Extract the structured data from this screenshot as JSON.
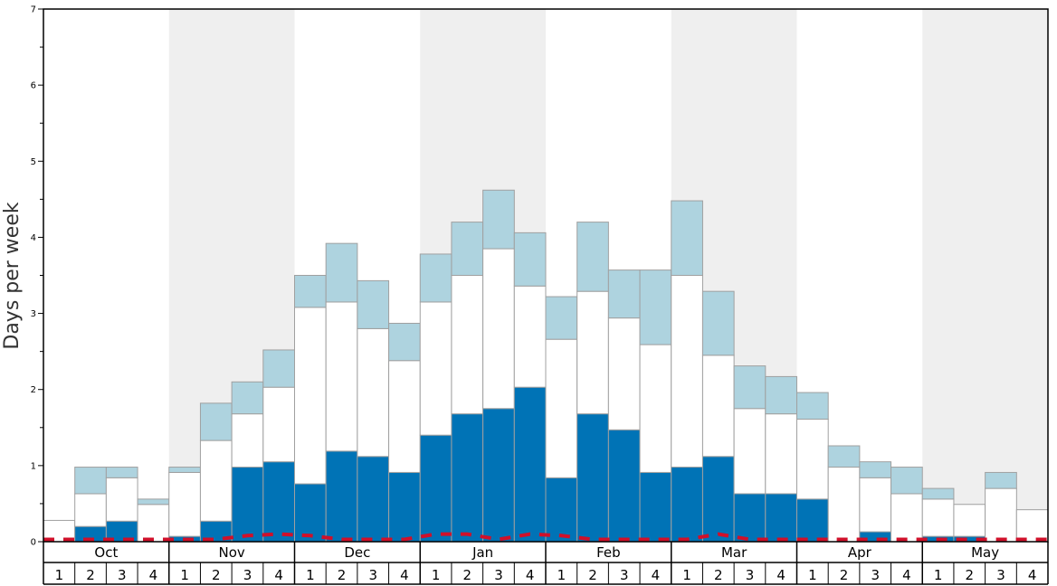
{
  "chart_data": {
    "type": "bar",
    "ylabel": "Days per week",
    "xlabel": "",
    "ylim": [
      0,
      7
    ],
    "yticks": [
      0,
      1,
      2,
      3,
      4,
      5,
      6,
      7
    ],
    "months": [
      "Oct",
      "Nov",
      "Dec",
      "Jan",
      "Feb",
      "Mar",
      "Apr",
      "May"
    ],
    "weeks_per_month": [
      "1",
      "2",
      "3",
      "4"
    ],
    "colors": {
      "dark": "#0073b6",
      "white": "#ffffff",
      "light": "#aed3df",
      "shade": "#efefef",
      "line": "#d0102a",
      "edge": "#a0a0a0"
    },
    "series": [
      {
        "color_key": "dark",
        "values": [
          0,
          0.2,
          0.27,
          0,
          0.07,
          0.27,
          0.98,
          1.05,
          0.76,
          1.19,
          1.12,
          0.91,
          1.4,
          1.68,
          1.75,
          2.03,
          0.84,
          1.68,
          1.47,
          0.91,
          0.98,
          1.12,
          0.63,
          0.63,
          0.56,
          0,
          0.13,
          0,
          0.07,
          0.07,
          0,
          0
        ]
      },
      {
        "color_key": "white",
        "values": [
          0.28,
          0.43,
          0.57,
          0.49,
          0.84,
          1.06,
          0.7,
          0.98,
          2.32,
          1.96,
          1.68,
          1.47,
          1.75,
          1.82,
          2.1,
          1.33,
          1.82,
          1.61,
          1.47,
          1.68,
          2.52,
          1.33,
          1.12,
          1.05,
          1.05,
          0.98,
          0.71,
          0.63,
          0.49,
          0.42,
          0.7,
          0.42
        ]
      },
      {
        "color_key": "light",
        "values": [
          0,
          0.35,
          0.14,
          0.07,
          0.07,
          0.49,
          0.42,
          0.49,
          0.42,
          0.77,
          0.63,
          0.49,
          0.63,
          0.7,
          0.77,
          0.7,
          0.56,
          0.91,
          0.63,
          0.98,
          0.98,
          0.84,
          0.56,
          0.49,
          0.35,
          0.28,
          0.21,
          0.35,
          0.14,
          0,
          0.21,
          0
        ]
      }
    ],
    "dashed_line": [
      0.03,
      0.03,
      0.03,
      0.03,
      0.03,
      0.03,
      0.08,
      0.1,
      0.08,
      0.03,
      0.03,
      0.03,
      0.1,
      0.1,
      0.03,
      0.1,
      0.08,
      0.03,
      0.03,
      0.03,
      0.03,
      0.1,
      0.03,
      0.03,
      0.03,
      0.03,
      0.03,
      0.03,
      0.03,
      0.03,
      0.03,
      0.03
    ],
    "grid": false
  }
}
